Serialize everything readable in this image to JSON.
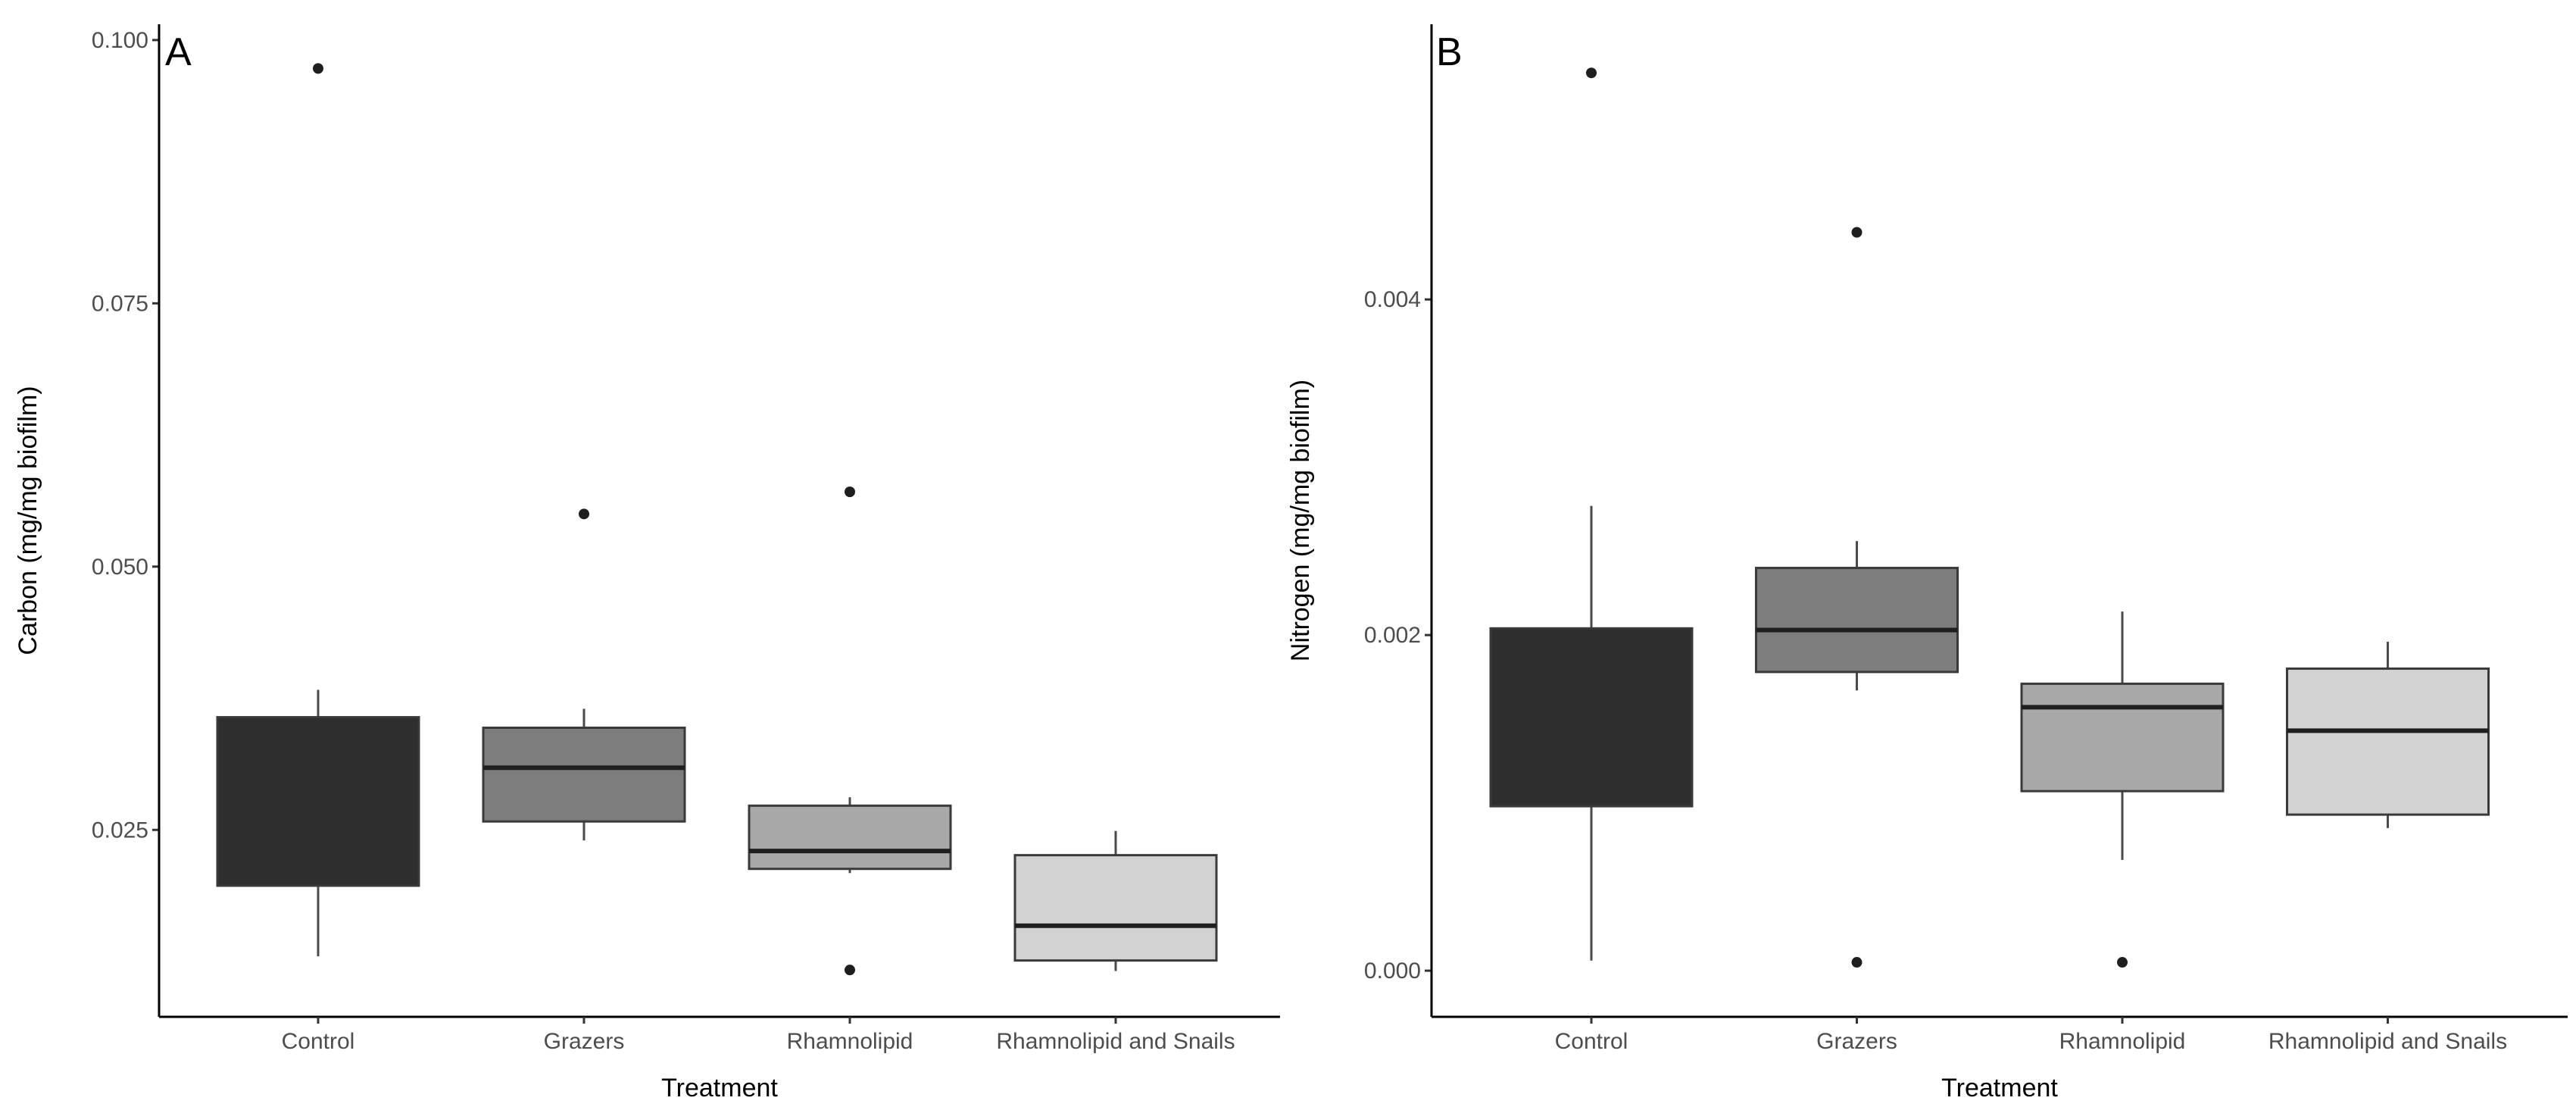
{
  "figure": {
    "background": "#ffffff",
    "axis_color": "#000000",
    "tick_label_color": "#4d4d4d",
    "title_color": "#000000",
    "outlier_color": "#1f1f1f"
  },
  "chart_data": [
    {
      "type": "boxplot",
      "tag": "A",
      "ylabel": "Carbon (mg/mg biofilm)",
      "xlabel": "Treatment",
      "categories": [
        "Control",
        "Grazers",
        "Rhamnolipid",
        "Rhamnolipid and Snails"
      ],
      "ylim": [
        0.00725,
        0.1015
      ],
      "grid": "off",
      "yticks": [
        {
          "value": 0.025,
          "label": "0.025"
        },
        {
          "value": 0.05,
          "label": "0.050"
        },
        {
          "value": 0.075,
          "label": "0.075"
        },
        {
          "value": 0.1,
          "label": "0.100"
        }
      ],
      "boxes": [
        {
          "category": "Control",
          "fill": "#2e2e2e",
          "whisker_low": 0.013,
          "q1": 0.0197,
          "median": null,
          "q3": 0.0357,
          "whisker_high": 0.0383,
          "outliers": [
            0.0973
          ]
        },
        {
          "category": "Grazers",
          "fill": "#7d7d7d",
          "whisker_low": 0.024,
          "q1": 0.0258,
          "median": 0.0309,
          "q3": 0.0347,
          "whisker_high": 0.0365,
          "outliers": [
            0.055
          ]
        },
        {
          "category": "Rhamnolipid",
          "fill": "#a8a8a8",
          "whisker_low": 0.0209,
          "q1": 0.0213,
          "median": 0.023,
          "q3": 0.0273,
          "whisker_high": 0.0281,
          "outliers": [
            0.0571,
            0.0117
          ]
        },
        {
          "category": "Rhamnolipid and Snails",
          "fill": "#d2d2d2",
          "whisker_low": 0.0116,
          "q1": 0.0126,
          "median": 0.0159,
          "q3": 0.0226,
          "whisker_high": 0.0249,
          "outliers": []
        }
      ]
    },
    {
      "type": "boxplot",
      "tag": "B",
      "ylabel": "Nitrogen (mg/mg biofilm)",
      "xlabel": "Treatment",
      "categories": [
        "Control",
        "Grazers",
        "Rhamnolipid",
        "Rhamnolipid and Snails"
      ],
      "ylim": [
        -0.000275,
        0.00564
      ],
      "grid": "off",
      "yticks": [
        {
          "value": 0.0,
          "label": "0.000"
        },
        {
          "value": 0.002,
          "label": "0.002"
        },
        {
          "value": 0.004,
          "label": "0.004"
        }
      ],
      "boxes": [
        {
          "category": "Control",
          "fill": "#2e2e2e",
          "whisker_low": 6e-05,
          "q1": 0.00098,
          "median": null,
          "q3": 0.00204,
          "whisker_high": 0.00277,
          "outliers": [
            0.00535
          ]
        },
        {
          "category": "Grazers",
          "fill": "#7d7d7d",
          "whisker_low": 0.00167,
          "q1": 0.00178,
          "median": 0.00203,
          "q3": 0.0024,
          "whisker_high": 0.00256,
          "outliers": [
            0.0044,
            5e-05
          ]
        },
        {
          "category": "Rhamnolipid",
          "fill": "#a8a8a8",
          "whisker_low": 0.00066,
          "q1": 0.00107,
          "median": 0.00157,
          "q3": 0.00171,
          "whisker_high": 0.00214,
          "outliers": [
            5e-05
          ]
        },
        {
          "category": "Rhamnolipid and Snails",
          "fill": "#d2d2d2",
          "whisker_low": 0.00085,
          "q1": 0.00093,
          "median": 0.00143,
          "q3": 0.0018,
          "whisker_high": 0.00196,
          "outliers": []
        }
      ]
    }
  ]
}
